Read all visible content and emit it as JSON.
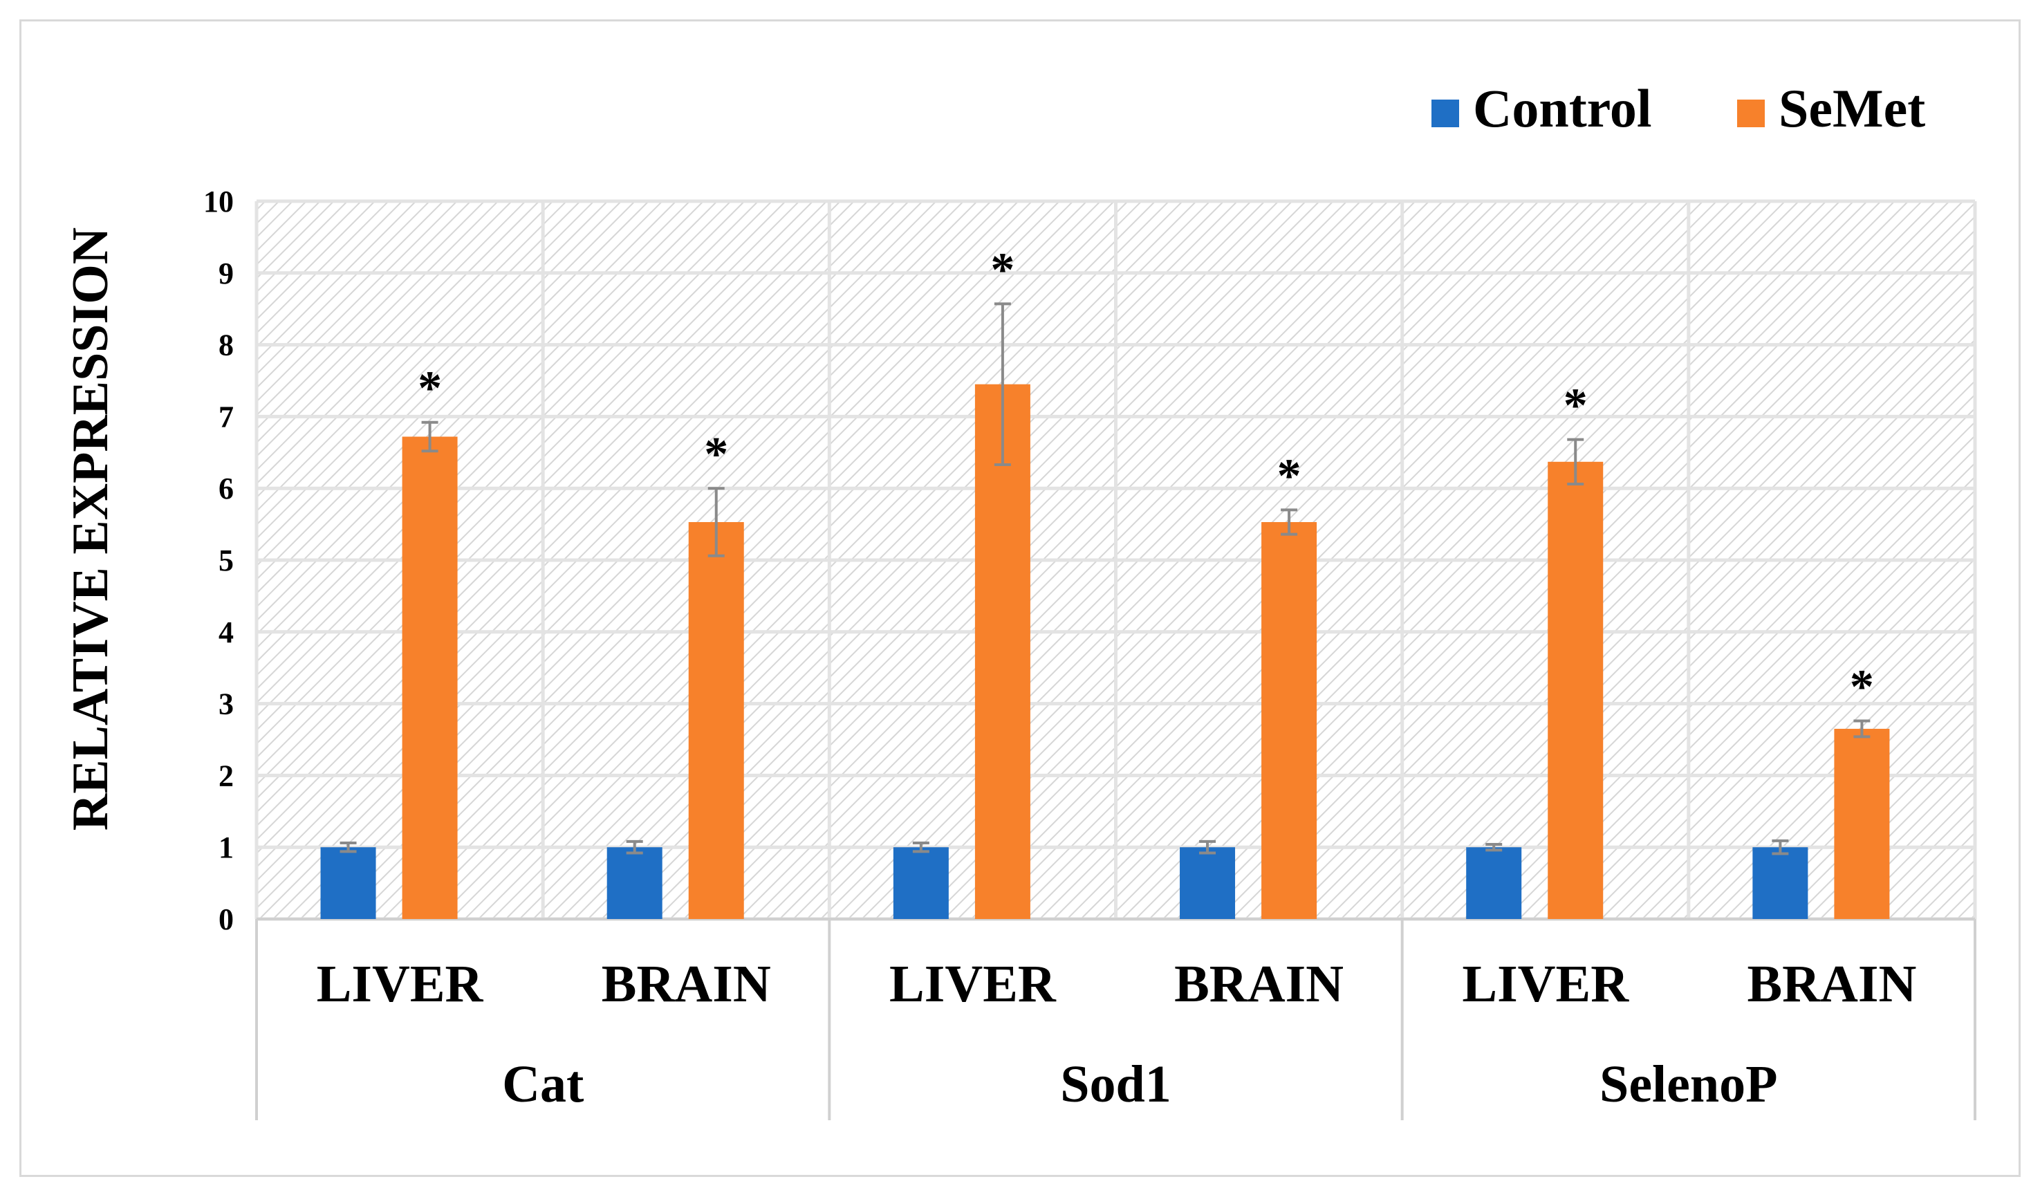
{
  "chart_data": {
    "type": "bar",
    "title": "",
    "ylabel": "RELATIVE EXPRESSION",
    "xlabel": "",
    "ylim": [
      0,
      10
    ],
    "yticks": [
      "0",
      "1",
      "2",
      "3",
      "4",
      "5",
      "6",
      "7",
      "8",
      "9",
      "10"
    ],
    "grid": true,
    "legend_position": "top-right",
    "groups": [
      {
        "label": "Cat",
        "tissues": [
          "LIVER",
          "BRAIN"
        ]
      },
      {
        "label": "Sod1",
        "tissues": [
          "LIVER",
          "BRAIN"
        ]
      },
      {
        "label": "SelenoP",
        "tissues": [
          "LIVER",
          "BRAIN"
        ]
      }
    ],
    "categories": [
      "LIVER",
      "BRAIN",
      "LIVER",
      "BRAIN",
      "LIVER",
      "BRAIN"
    ],
    "series": [
      {
        "name": "Control",
        "color": "#1f6fc5",
        "values": [
          1.0,
          1.0,
          1.0,
          1.0,
          1.0,
          1.0
        ],
        "errors": [
          0.06,
          0.08,
          0.06,
          0.08,
          0.04,
          0.09
        ],
        "annotations": [
          "",
          "",
          "",
          "",
          "",
          ""
        ]
      },
      {
        "name": "SeMet",
        "color": "#f7812b",
        "values": [
          6.72,
          5.53,
          7.45,
          5.53,
          6.37,
          2.65
        ],
        "errors": [
          0.2,
          0.47,
          1.12,
          0.17,
          0.31,
          0.11
        ],
        "annotations": [
          "*",
          "*",
          "*",
          "*",
          "*",
          "*"
        ]
      }
    ]
  }
}
